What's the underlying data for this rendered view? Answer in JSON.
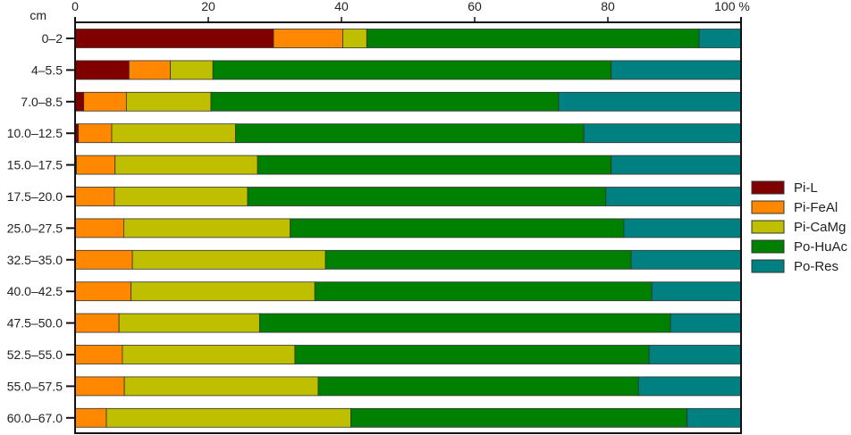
{
  "chart_data": {
    "type": "bar",
    "orientation": "horizontal",
    "stacked": true,
    "ylabel": "cm",
    "xlabel_unit": "%",
    "xlim": [
      0,
      100
    ],
    "xticks": [
      "0",
      "20",
      "40",
      "60",
      "80",
      "100 %"
    ],
    "xtick_values": [
      0,
      20,
      40,
      60,
      80,
      100
    ],
    "grid": false,
    "legend_position": "right",
    "categories": [
      "0–2",
      "4–5.5",
      "7.0–8.5",
      "10.0–12.5",
      "15.0–17.5",
      "17.5–20.0",
      "25.0–27.5",
      "32.5–35.0",
      "40.0–42.5",
      "47.5–50.0",
      "52.5–55.0",
      "55.0–57.5",
      "60.0–67.0"
    ],
    "series": [
      {
        "name": "Pi-L",
        "color": "#800000",
        "values": [
          29.8,
          8.1,
          1.3,
          0.5,
          0.2,
          0,
          0,
          0,
          0,
          0,
          0,
          0,
          0
        ]
      },
      {
        "name": "Pi-FeAl",
        "color": "#ff8800",
        "values": [
          10.4,
          6.2,
          6.4,
          5.0,
          5.8,
          5.9,
          7.3,
          8.6,
          8.4,
          6.6,
          7.1,
          7.4,
          4.7
        ]
      },
      {
        "name": "Pi-CaMg",
        "color": "#bfbf00",
        "values": [
          3.6,
          6.4,
          12.7,
          18.6,
          21.4,
          20.0,
          25.0,
          29.0,
          27.6,
          21.1,
          25.9,
          29.1,
          36.7
        ]
      },
      {
        "name": "Po-HuAc",
        "color": "#008000",
        "values": [
          49.9,
          59.8,
          52.2,
          52.3,
          53.1,
          53.8,
          50.1,
          45.9,
          50.6,
          61.7,
          53.2,
          48.1,
          50.5
        ]
      },
      {
        "name": "Po-Res",
        "color": "#008080",
        "values": [
          6.3,
          19.5,
          27.4,
          23.6,
          19.5,
          20.3,
          17.6,
          16.5,
          13.4,
          10.6,
          13.8,
          15.4,
          8.1
        ]
      }
    ]
  }
}
